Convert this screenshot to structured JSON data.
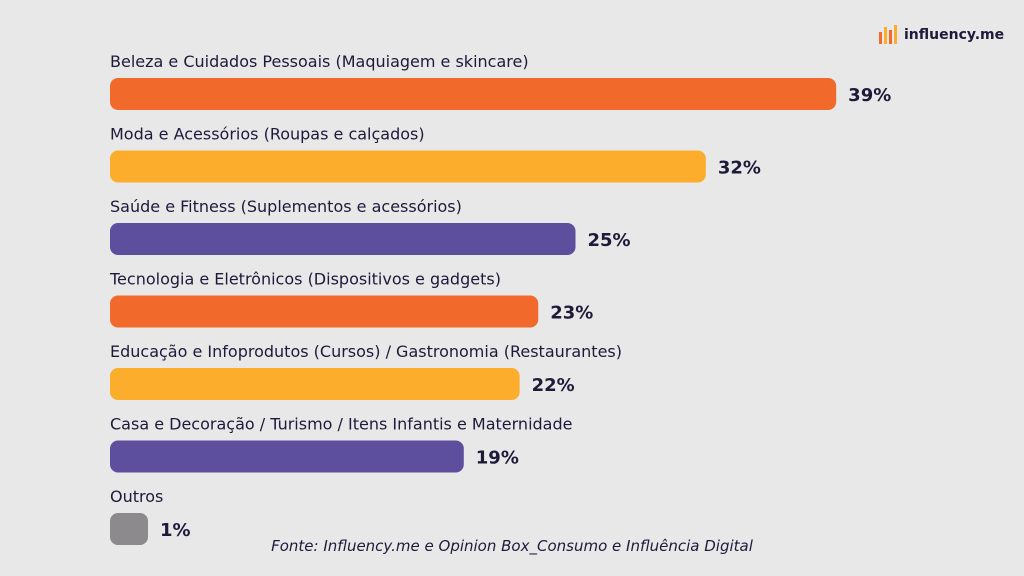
{
  "brand": {
    "name": "influency.me"
  },
  "source": "Fonte: Influency.me e Opinion Box_Consumo e Influência Digital",
  "colors": {
    "orange": "#f26a2b",
    "yellow": "#fcad2c",
    "purple": "#5d4e9e",
    "gray": "#8c8a8d",
    "text": "#1d1a3a",
    "background": "#e8e8e8"
  },
  "chart_data": {
    "type": "bar",
    "orientation": "horizontal",
    "categories": [
      "Beleza e Cuidados Pessoais (Maquiagem e skincare)",
      "Moda e Acessórios (Roupas e calçados)",
      "Saúde e Fitness (Suplementos e acessórios)",
      "Tecnologia e Eletrônicos (Dispositivos e gadgets)",
      "Educação e Infoprodutos (Cursos) / Gastronomia (Restaurantes)",
      "Casa e Decoração / Turismo / Itens Infantis e Maternidade",
      "Outros"
    ],
    "values": [
      39,
      32,
      25,
      23,
      22,
      19,
      1
    ],
    "value_labels": [
      "39%",
      "32%",
      "25%",
      "23%",
      "22%",
      "19%",
      "1%"
    ],
    "bar_colors": [
      "#f26a2b",
      "#fcad2c",
      "#5d4e9e",
      "#f26a2b",
      "#fcad2c",
      "#5d4e9e",
      "#8c8a8d"
    ],
    "title": "",
    "xlabel": "",
    "ylabel": "",
    "grid": false,
    "legend": "none"
  }
}
